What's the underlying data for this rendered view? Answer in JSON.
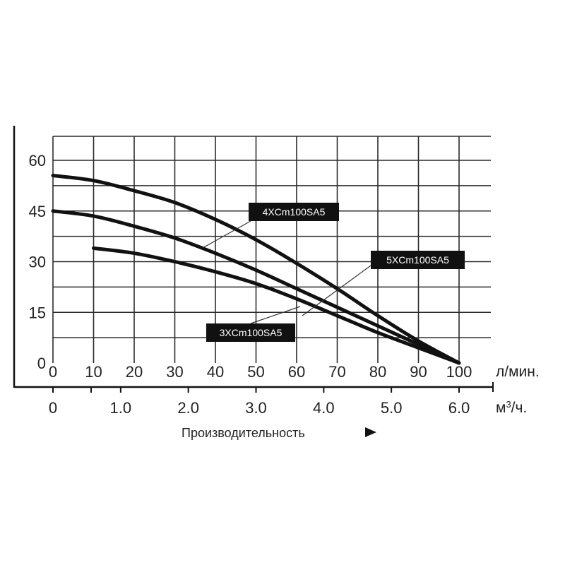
{
  "chart_data": {
    "type": "line",
    "xlabel": "Производительность",
    "x_unit": "л/мин.",
    "x2_unit_base": "м",
    "x2_unit_sup": "3",
    "x2_unit_tail": "/ч.",
    "xlim": [
      0,
      100
    ],
    "ylim": [
      0,
      60
    ],
    "x_ticks": [
      "0",
      "10",
      "20",
      "30",
      "40",
      "50",
      "60",
      "70",
      "80",
      "90",
      "100"
    ],
    "x2_ticks": [
      {
        "x": 0,
        "label": "0"
      },
      {
        "x": 16.67,
        "label": "1.0"
      },
      {
        "x": 33.33,
        "label": "2.0"
      },
      {
        "x": 50,
        "label": "3.0"
      },
      {
        "x": 66.67,
        "label": "4.0"
      },
      {
        "x": 83.33,
        "label": "5.0"
      },
      {
        "x": 100,
        "label": "6.0"
      }
    ],
    "y_ticks": [
      "0",
      "15",
      "30",
      "45",
      "60"
    ],
    "grid": true,
    "series": [
      {
        "name": "4XCm100SA5",
        "points": [
          [
            0,
            55.5
          ],
          [
            10,
            54
          ],
          [
            20,
            51
          ],
          [
            30,
            47.5
          ],
          [
            40,
            42.5
          ],
          [
            50,
            36.5
          ],
          [
            60,
            29.5
          ],
          [
            70,
            22
          ],
          [
            80,
            14
          ],
          [
            90,
            6.5
          ],
          [
            100,
            0
          ]
        ]
      },
      {
        "name": "5XCm100SA5",
        "points": [
          [
            0,
            45
          ],
          [
            10,
            43.5
          ],
          [
            20,
            40.5
          ],
          [
            30,
            37
          ],
          [
            40,
            32.5
          ],
          [
            50,
            27.5
          ],
          [
            60,
            22
          ],
          [
            70,
            16.5
          ],
          [
            80,
            11
          ],
          [
            90,
            5.5
          ],
          [
            100,
            0
          ]
        ]
      },
      {
        "name": "3XCm100SA5",
        "points": [
          [
            10,
            34
          ],
          [
            20,
            32.5
          ],
          [
            30,
            30
          ],
          [
            40,
            27
          ],
          [
            50,
            23.5
          ],
          [
            60,
            19
          ],
          [
            70,
            14
          ],
          [
            80,
            9
          ],
          [
            90,
            4.5
          ],
          [
            100,
            0
          ]
        ]
      }
    ]
  }
}
